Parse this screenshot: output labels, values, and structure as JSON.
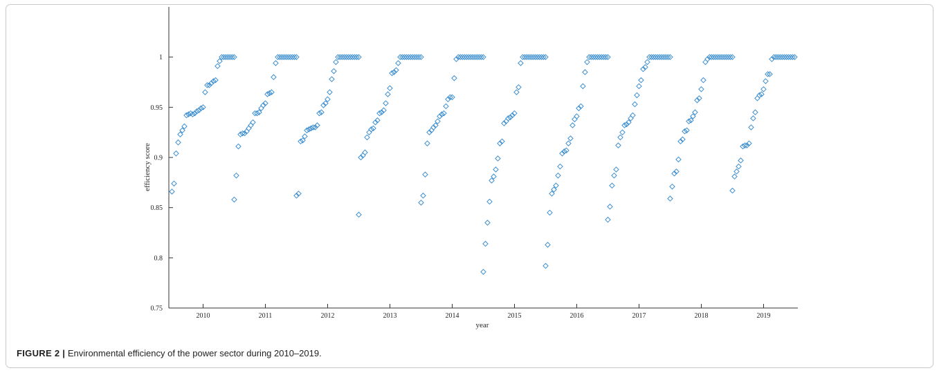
{
  "caption": {
    "label": "FIGURE 2 |",
    "text": "Environmental efficiency of the power sector during 2010–2019."
  },
  "chart_data": {
    "type": "scatter",
    "marker": "diamond",
    "marker_color": "#3d8fd1",
    "xlabel": "year",
    "ylabel": "efficiency score",
    "xlim": [
      2009.45,
      2019.55
    ],
    "ylim": [
      0.75,
      1.05
    ],
    "x_ticks": [
      2010,
      2011,
      2012,
      2013,
      2014,
      2015,
      2016,
      2017,
      2018,
      2019
    ],
    "y_ticks": [
      0.75,
      0.8,
      0.85,
      0.9,
      0.95,
      1
    ],
    "y_tick_labels": [
      "0.75",
      "0.8",
      "0.85",
      "0.9",
      "0.95",
      "1"
    ],
    "grid": false,
    "groups": [
      {
        "start": 2009.5,
        "step": 0.0333,
        "values": [
          0.866,
          0.874,
          0.904,
          0.915,
          0.923,
          0.927,
          0.931,
          0.942,
          0.943,
          0.944,
          0.943,
          0.944,
          0.946,
          0.947,
          0.949,
          0.95,
          0.965,
          0.972,
          0.972,
          0.974,
          0.976,
          0.977,
          0.991,
          0.996,
          1,
          1,
          1,
          1,
          1,
          1,
          1
        ]
      },
      {
        "start": 2010.5,
        "step": 0.0333,
        "values": [
          0.858,
          0.882,
          0.911,
          0.923,
          0.924,
          0.924,
          0.926,
          0.929,
          0.932,
          0.935,
          0.944,
          0.944,
          0.945,
          0.949,
          0.952,
          0.954,
          0.963,
          0.964,
          0.965,
          0.98,
          0.994,
          1,
          1,
          1,
          1,
          1,
          1,
          1,
          1,
          1,
          1
        ]
      },
      {
        "start": 2011.5,
        "step": 0.0333,
        "values": [
          0.862,
          0.864,
          0.916,
          0.917,
          0.921,
          0.927,
          0.928,
          0.929,
          0.93,
          0.93,
          0.932,
          0.944,
          0.945,
          0.952,
          0.954,
          0.958,
          0.965,
          0.978,
          0.986,
          0.995,
          1,
          1,
          1,
          1,
          1,
          1,
          1,
          1,
          1,
          1,
          1
        ]
      },
      {
        "start": 2012.5,
        "step": 0.0333,
        "values": [
          0.843,
          0.9,
          0.902,
          0.905,
          0.92,
          0.925,
          0.928,
          0.929,
          0.935,
          0.937,
          0.944,
          0.945,
          0.947,
          0.954,
          0.963,
          0.969,
          0.984,
          0.985,
          0.987,
          0.994,
          1,
          1,
          1,
          1,
          1,
          1,
          1,
          1,
          1,
          1,
          1
        ]
      },
      {
        "start": 2013.5,
        "step": 0.0333,
        "values": [
          0.855,
          0.862,
          0.883,
          0.914,
          0.925,
          0.927,
          0.93,
          0.932,
          0.936,
          0.941,
          0.943,
          0.944,
          0.951,
          0.958,
          0.96,
          0.96,
          0.979,
          0.998,
          1,
          1,
          1,
          1,
          1,
          1,
          1,
          1,
          1,
          1,
          1,
          1,
          1
        ]
      },
      {
        "start": 2014.5,
        "step": 0.0333,
        "values": [
          0.786,
          0.814,
          0.835,
          0.856,
          0.877,
          0.881,
          0.888,
          0.899,
          0.914,
          0.916,
          0.934,
          0.936,
          0.939,
          0.94,
          0.942,
          0.944,
          0.965,
          0.97,
          0.994,
          1,
          1,
          1,
          1,
          1,
          1,
          1,
          1,
          1,
          1,
          1,
          1
        ]
      },
      {
        "start": 2015.5,
        "step": 0.0333,
        "values": [
          0.792,
          0.813,
          0.845,
          0.864,
          0.868,
          0.872,
          0.882,
          0.891,
          0.904,
          0.906,
          0.907,
          0.914,
          0.919,
          0.932,
          0.938,
          0.941,
          0.949,
          0.951,
          0.971,
          0.985,
          0.995,
          1,
          1,
          1,
          1,
          1,
          1,
          1,
          1,
          1,
          1
        ]
      },
      {
        "start": 2016.5,
        "step": 0.0333,
        "values": [
          0.838,
          0.851,
          0.872,
          0.882,
          0.888,
          0.912,
          0.92,
          0.925,
          0.932,
          0.933,
          0.935,
          0.939,
          0.942,
          0.953,
          0.962,
          0.971,
          0.977,
          0.988,
          0.99,
          0.995,
          1,
          1,
          1,
          1,
          1,
          1,
          1,
          1,
          1,
          1,
          1
        ]
      },
      {
        "start": 2017.5,
        "step": 0.0333,
        "values": [
          0.859,
          0.871,
          0.884,
          0.886,
          0.898,
          0.916,
          0.918,
          0.926,
          0.927,
          0.936,
          0.937,
          0.941,
          0.945,
          0.957,
          0.959,
          0.968,
          0.977,
          0.995,
          0.998,
          1,
          1,
          1,
          1,
          1,
          1,
          1,
          1,
          1,
          1,
          1,
          1
        ]
      },
      {
        "start": 2018.5,
        "step": 0.0333,
        "values": [
          0.867,
          0.881,
          0.886,
          0.891,
          0.897,
          0.911,
          0.912,
          0.912,
          0.914,
          0.93,
          0.939,
          0.945,
          0.959,
          0.962,
          0.963,
          0.968,
          0.976,
          0.983,
          0.983,
          0.998,
          1,
          1,
          1,
          1,
          1,
          1,
          1,
          1,
          1,
          1,
          1
        ]
      }
    ]
  }
}
